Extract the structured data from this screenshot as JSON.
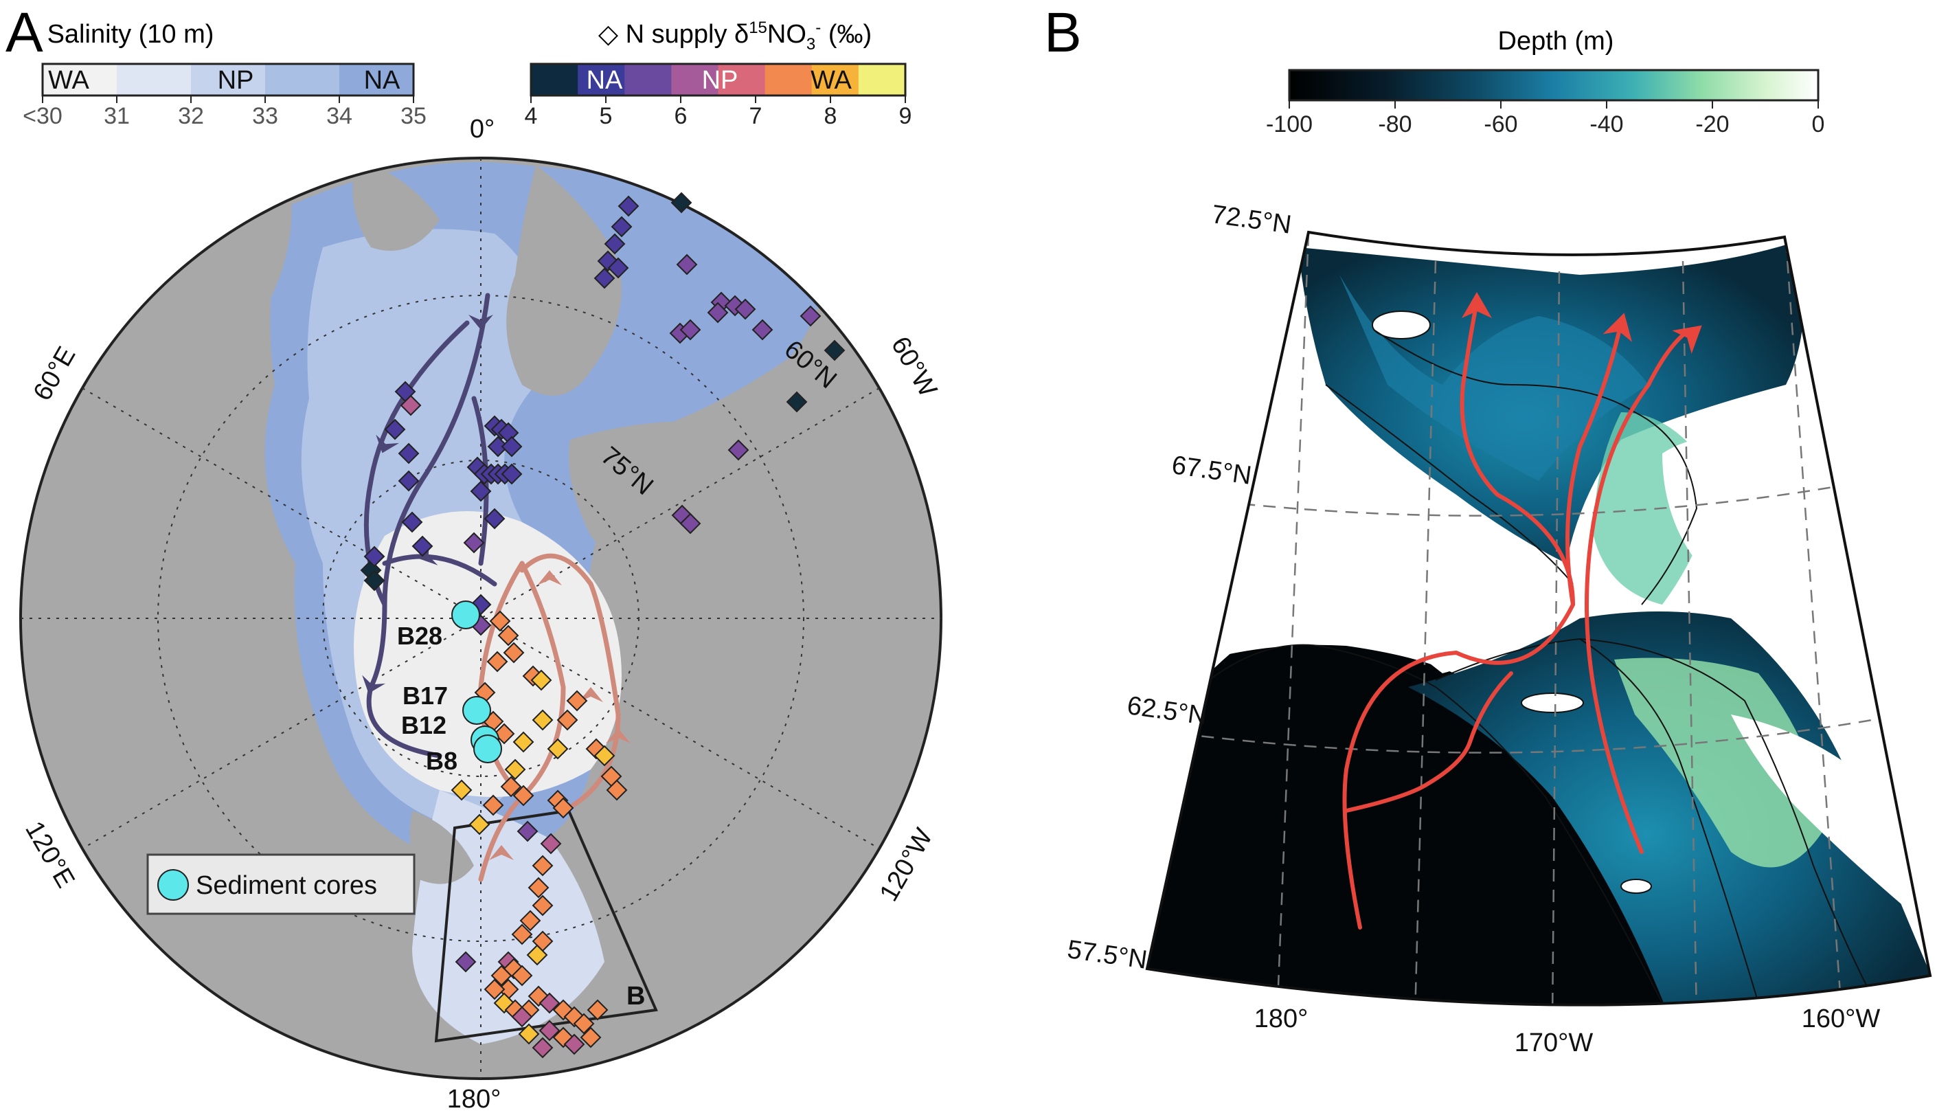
{
  "panel_a": {
    "letter": "A",
    "salinity_legend": {
      "title": "Salinity (10 m)",
      "regions": [
        "WA",
        "NP",
        "NA"
      ],
      "ticks": [
        "<30",
        "31",
        "32",
        "33",
        "34",
        "35"
      ],
      "colors": [
        "#f2f2f2",
        "#dfe6f3",
        "#c6d3ec",
        "#a9bfe3",
        "#8ea9da"
      ]
    },
    "n_supply_legend": {
      "title_prefix": "◇ N supply δ",
      "title_super": "15",
      "title_mid": "NO",
      "title_sub": "3",
      "title_super2": "-",
      "title_suffix": " (‰)",
      "regions": [
        "NA",
        "NP",
        "WA"
      ],
      "ticks": [
        "4",
        "5",
        "6",
        "7",
        "8",
        "9"
      ],
      "colors": [
        "#0e2a3f",
        "#3b3b9a",
        "#6a4a9e",
        "#a65a9a",
        "#d9687a",
        "#f28a4f",
        "#f7b23a",
        "#f0f07a"
      ]
    },
    "lon_labels": [
      "0°",
      "60°E",
      "60°W",
      "120°E",
      "120°W",
      "180°"
    ],
    "lat_labels": [
      "60°N",
      "75°N"
    ],
    "cores": [
      "B28",
      "B17",
      "B12",
      "B8"
    ],
    "sediment_legend": "Sediment cores",
    "box_label": "B"
  },
  "panel_b": {
    "letter": "B",
    "depth_legend": {
      "title": "Depth (m)",
      "ticks": [
        "-100",
        "-80",
        "-60",
        "-40",
        "-20",
        "0"
      ],
      "colors": [
        "#000000",
        "#0b2a3a",
        "#105a78",
        "#1e8fae",
        "#6fcfb0",
        "#c8f0c0",
        "#ffffff"
      ]
    },
    "lat_labels": [
      "72.5°N",
      "67.5°N",
      "62.5°N",
      "57.5°N"
    ],
    "lon_labels": [
      "180°",
      "170°W",
      "160°W"
    ]
  },
  "colors": {
    "land": "#a8a8a8",
    "ocean_light": "#eeeeee",
    "flow_dark": "#4b4675",
    "flow_light": "#cf8a7c",
    "core": "#5ce8ea",
    "red_flow": "#e8453c"
  }
}
